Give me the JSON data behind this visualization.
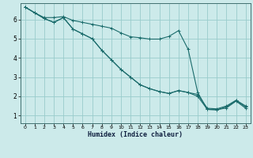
{
  "xlabel": "Humidex (Indice chaleur)",
  "bg_color": "#cceaea",
  "grid_color": "#99cccc",
  "line_color": "#1a6b6b",
  "xlim": [
    -0.5,
    23.5
  ],
  "ylim": [
    0.6,
    6.85
  ],
  "xticks": [
    0,
    1,
    2,
    3,
    4,
    5,
    6,
    7,
    8,
    9,
    10,
    11,
    12,
    13,
    14,
    15,
    16,
    17,
    18,
    19,
    20,
    21,
    22,
    23
  ],
  "yticks": [
    1,
    2,
    3,
    4,
    5,
    6
  ],
  "line1_x": [
    0,
    1,
    2,
    3,
    4,
    5,
    6,
    7,
    8,
    9,
    10,
    11,
    12,
    13,
    14,
    15,
    16,
    17,
    18,
    19,
    20,
    21,
    22,
    23
  ],
  "line1_y": [
    6.65,
    6.35,
    6.1,
    6.1,
    6.15,
    5.95,
    5.85,
    5.75,
    5.65,
    5.55,
    5.3,
    5.1,
    5.05,
    4.98,
    4.98,
    5.12,
    5.42,
    4.45,
    2.2,
    1.32,
    1.3,
    1.45,
    1.78,
    1.45
  ],
  "line2_x": [
    0,
    1,
    2,
    3,
    4,
    5,
    6,
    7,
    8,
    9,
    10,
    11,
    12,
    13,
    14,
    15,
    16,
    17,
    18,
    19,
    20,
    21,
    22,
    23
  ],
  "line2_y": [
    6.65,
    6.35,
    6.05,
    5.85,
    6.1,
    5.5,
    5.25,
    5.0,
    4.4,
    3.9,
    3.4,
    3.0,
    2.6,
    2.4,
    2.25,
    2.15,
    2.3,
    2.2,
    2.0,
    1.32,
    1.3,
    1.4,
    1.75,
    1.38
  ],
  "line3_x": [
    0,
    1,
    2,
    3,
    4,
    5,
    6,
    7,
    8,
    9,
    10,
    11,
    12,
    13,
    14,
    15,
    16,
    17,
    18,
    19,
    20,
    21,
    22,
    23
  ],
  "line3_y": [
    6.65,
    6.35,
    6.05,
    5.85,
    6.1,
    5.5,
    5.25,
    5.0,
    4.4,
    3.9,
    3.4,
    3.0,
    2.6,
    2.4,
    2.25,
    2.15,
    2.3,
    2.2,
    2.1,
    1.38,
    1.35,
    1.5,
    1.8,
    1.5
  ]
}
